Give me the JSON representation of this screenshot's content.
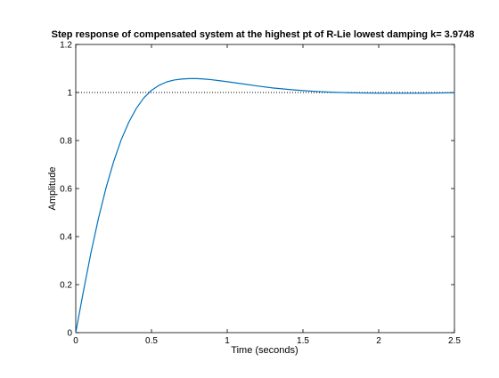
{
  "chart_data": {
    "type": "line",
    "title": "Step response of compensated system at the highest pt of R-Lie lowest damping k= 3.9748",
    "xlabel": "Time (seconds)",
    "ylabel": "Amplitude",
    "xlim": [
      0,
      2.5
    ],
    "ylim": [
      0,
      1.2
    ],
    "xticks": [
      0,
      0.5,
      1,
      1.5,
      2,
      2.5
    ],
    "xtick_labels": [
      "0",
      "0.5",
      "1",
      "1.5",
      "2",
      "2.5"
    ],
    "yticks": [
      0,
      0.2,
      0.4,
      0.6,
      0.8,
      1,
      1.2
    ],
    "ytick_labels": [
      "0",
      "0.2",
      "0.4",
      "0.6",
      "0.8",
      "1",
      "1.2"
    ],
    "grid": false,
    "reference_line": {
      "y": 1,
      "style": "dotted",
      "color": "#000000"
    },
    "series": [
      {
        "color": "#0072BD",
        "x": [
          0,
          0.05,
          0.1,
          0.15,
          0.2,
          0.25,
          0.3,
          0.35,
          0.4,
          0.45,
          0.5,
          0.55,
          0.6,
          0.65,
          0.7,
          0.75,
          0.8,
          0.85,
          0.9,
          0.95,
          1.0,
          1.1,
          1.2,
          1.3,
          1.4,
          1.5,
          1.6,
          1.7,
          1.8,
          1.9,
          2.0,
          2.1,
          2.2,
          2.3,
          2.4,
          2.5
        ],
        "y": [
          0,
          0.17,
          0.331,
          0.476,
          0.603,
          0.712,
          0.803,
          0.876,
          0.934,
          0.978,
          1.009,
          1.03,
          1.044,
          1.052,
          1.056,
          1.058,
          1.058,
          1.056,
          1.053,
          1.049,
          1.045,
          1.036,
          1.027,
          1.019,
          1.013,
          1.008,
          1.004,
          1.001,
          0.999,
          0.998,
          0.997,
          0.997,
          0.997,
          0.997,
          0.998,
          0.999
        ]
      }
    ]
  }
}
